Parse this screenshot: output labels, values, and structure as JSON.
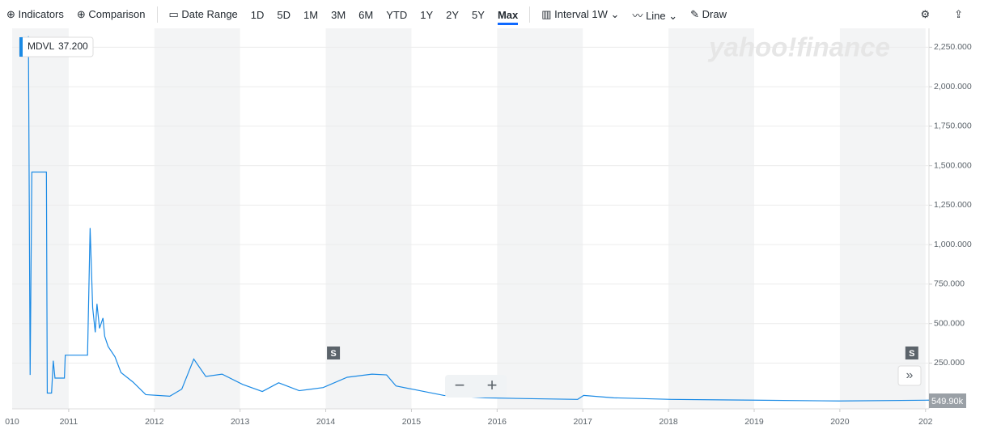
{
  "toolbar": {
    "indicators": "Indicators",
    "comparison": "Comparison",
    "date_range": "Date Range",
    "periods": [
      "1D",
      "5D",
      "1M",
      "3M",
      "6M",
      "YTD",
      "1Y",
      "2Y",
      "5Y",
      "Max"
    ],
    "selected_period": 9,
    "interval": "Interval",
    "interval_value": "1W",
    "chart_type": "Line",
    "draw": "Draw"
  },
  "watermark": "yahoo!finance",
  "tooltip_symbol": "MDVL",
  "tooltip_price": "37.200",
  "volume_label": "549.90k",
  "chart_data": {
    "type": "line",
    "x": [
      2010.53,
      2010.55,
      2010.57,
      2010.74,
      2010.75,
      2010.8,
      2010.82,
      2010.84,
      2010.95,
      2010.96,
      2011.22,
      2011.25,
      2011.28,
      2011.31,
      2011.33,
      2011.36,
      2011.4,
      2011.42,
      2011.46,
      2011.54,
      2011.61,
      2011.75,
      2011.9,
      2012.18,
      2012.32,
      2012.46,
      2012.6,
      2012.79,
      2013.03,
      2013.26,
      2013.45,
      2013.69,
      2013.97,
      2014.25,
      2014.54,
      2014.71,
      2014.82,
      2015.1,
      2015.38,
      2015.86,
      2016.33,
      2016.94,
      2017.01,
      2017.36,
      2018.03,
      2018.99,
      2019.99,
      2021.04
    ],
    "series": [
      {
        "name": "MDVL",
        "color": "#1a8ae5",
        "values": [
          2320,
          175,
          1460,
          1460,
          60,
          60,
          265,
          155,
          155,
          300,
          300,
          1105,
          600,
          445,
          625,
          470,
          535,
          420,
          355,
          290,
          190,
          130,
          50,
          40,
          85,
          275,
          165,
          180,
          115,
          70,
          125,
          75,
          95,
          160,
          180,
          175,
          105,
          75,
          45,
          30,
          25,
          20,
          45,
          30,
          20,
          15,
          10,
          15
        ]
      }
    ],
    "xlim": [
      2010.34,
      2021.04
    ],
    "xticks": [
      {
        "value": 2010,
        "label": "010"
      },
      2011,
      2012,
      2013,
      2014,
      2015,
      2016,
      2017,
      2018,
      2019,
      2020,
      {
        "value": 2021,
        "label": "202"
      }
    ],
    "ylim": [
      -40,
      2370
    ],
    "yticks": [
      {
        "value": 250,
        "label": "250.000"
      },
      {
        "value": 500,
        "label": "500.000"
      },
      {
        "value": 750,
        "label": "750.000"
      },
      {
        "value": 1000,
        "label": "1,000.000"
      },
      {
        "value": 1250,
        "label": "1,250.000"
      },
      {
        "value": 1500,
        "label": "1,500.000"
      },
      {
        "value": 1750,
        "label": "1,750.000"
      },
      {
        "value": 2000,
        "label": "2,000.000"
      },
      {
        "value": 2250,
        "label": "2,250.000"
      }
    ],
    "grid": true,
    "split_markers": [
      {
        "x": 2014.09,
        "label": "S"
      },
      {
        "x": 2020.84,
        "label": "S"
      }
    ]
  }
}
